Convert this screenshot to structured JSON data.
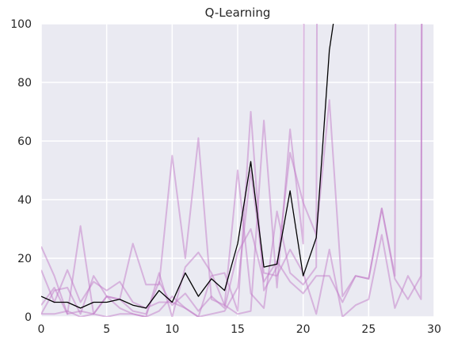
{
  "chart_data": {
    "type": "line",
    "title": "Q-Learning",
    "xlabel": "",
    "ylabel": "",
    "xlim": [
      0,
      30
    ],
    "ylim": [
      0,
      100
    ],
    "xticks": [
      "0",
      "5",
      "10",
      "15",
      "20",
      "25",
      "30"
    ],
    "yticks": [
      "0",
      "20",
      "40",
      "60",
      "80",
      "100"
    ],
    "grid": true,
    "background": "#eaeaf2",
    "colors": {
      "runs": "#c27bc8",
      "mean": "#000000",
      "grid": "#ffffff"
    },
    "series": [
      {
        "role": "mean",
        "x": [
          0,
          1,
          2,
          3,
          4,
          5,
          6,
          7,
          8,
          9,
          10,
          11,
          12,
          13,
          14,
          15,
          16,
          17,
          18,
          19,
          20,
          21,
          22,
          22.3
        ],
        "values": [
          7,
          5,
          5,
          3,
          5,
          5,
          6,
          4,
          3,
          9,
          5,
          15,
          7,
          13,
          9,
          25,
          53,
          17,
          18,
          43,
          14,
          27,
          91,
          100
        ]
      },
      {
        "role": "run",
        "x": [
          0,
          1,
          2,
          3,
          4,
          5,
          6,
          7,
          8,
          9,
          10,
          11,
          12,
          13,
          14,
          15,
          16,
          17,
          18,
          19,
          20,
          21,
          21.05
        ],
        "values": [
          24,
          14,
          1,
          31,
          1,
          7,
          6,
          25,
          11,
          11,
          55,
          20,
          61,
          6,
          4,
          50,
          8,
          3,
          36,
          15,
          11,
          17,
          100
        ]
      },
      {
        "role": "run",
        "x": [
          0,
          1,
          2,
          3,
          4,
          5,
          6,
          7,
          8,
          9,
          10,
          11,
          12,
          13,
          14,
          15,
          16,
          17,
          18,
          19,
          20,
          20.05
        ],
        "values": [
          1,
          9,
          10,
          1,
          14,
          7,
          3,
          1,
          0,
          15,
          0,
          17,
          22,
          15,
          4,
          1,
          2,
          67,
          10,
          64,
          25,
          100
        ]
      },
      {
        "role": "run",
        "x": [
          0,
          1,
          2,
          3,
          4,
          5,
          6,
          7,
          8,
          9,
          10,
          11,
          12,
          13,
          14,
          15,
          16,
          17,
          18,
          19,
          20,
          21,
          22,
          23,
          24,
          25,
          26,
          27,
          27.05
        ],
        "values": [
          16,
          5,
          16,
          5,
          12,
          9,
          12,
          5,
          3,
          5,
          5,
          3,
          0,
          14,
          15,
          2,
          70,
          9,
          17,
          56,
          39,
          28,
          74,
          7,
          14,
          13,
          37,
          14,
          100
        ]
      },
      {
        "role": "run",
        "x": [
          0,
          1,
          2,
          3,
          4,
          5,
          6,
          7,
          8,
          9,
          10,
          11,
          12,
          13,
          14,
          15,
          16,
          17,
          18,
          19,
          20,
          21,
          22,
          23,
          24,
          25,
          26,
          27,
          28,
          29,
          29.05
        ],
        "values": [
          1,
          1,
          2,
          0,
          1,
          0,
          1,
          1,
          0,
          2,
          7,
          3,
          0,
          1,
          2,
          10,
          50,
          15,
          14,
          23,
          15,
          1,
          23,
          0,
          4,
          6,
          28,
          3,
          14,
          6,
          100
        ]
      },
      {
        "role": "run",
        "x": [
          0,
          1,
          2,
          3,
          4,
          5,
          6,
          7,
          8,
          9,
          10,
          11,
          12,
          13,
          14,
          15,
          16,
          17,
          18,
          19,
          20,
          21,
          22,
          23,
          24,
          25,
          26,
          27,
          28,
          29,
          29.05
        ],
        "values": [
          4,
          10,
          1,
          2,
          1,
          7,
          6,
          2,
          1,
          12,
          4,
          8,
          2,
          7,
          3,
          22,
          30,
          12,
          19,
          12,
          8,
          14,
          14,
          5,
          14,
          13,
          37,
          13,
          6,
          14,
          100
        ]
      }
    ]
  }
}
